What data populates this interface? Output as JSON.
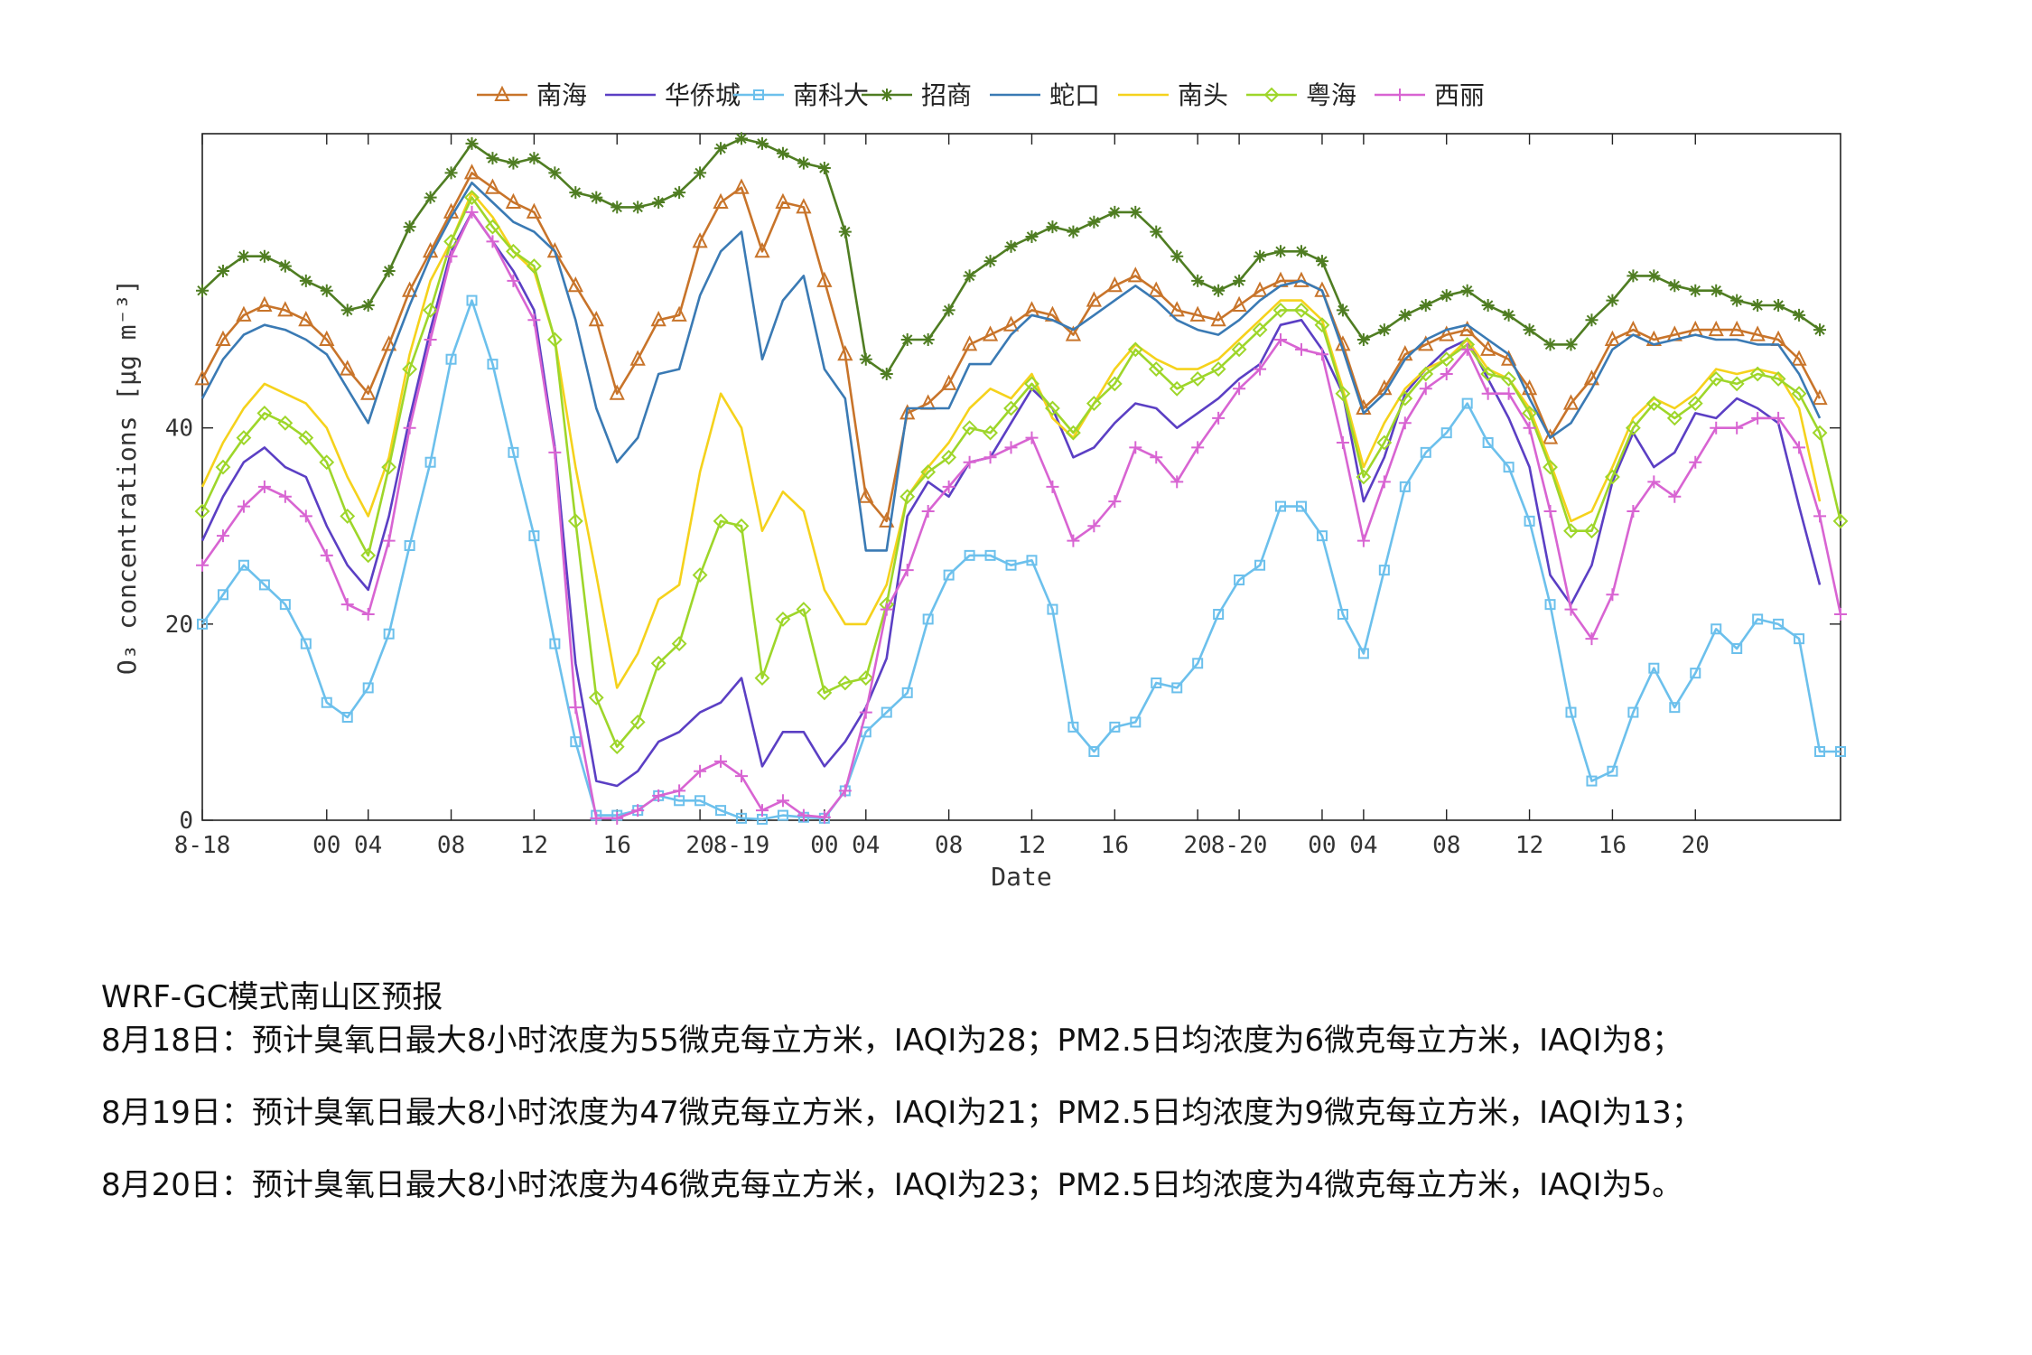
{
  "chart_data": {
    "type": "line",
    "title": "",
    "xlabel": "Date",
    "ylabel": "O₃ concentrations [μg m⁻³]",
    "ylim": [
      0,
      70
    ],
    "yticks": [
      0,
      20,
      40
    ],
    "grid": false,
    "legend_placement": "top",
    "x_hours_range": [
      0,
      79
    ],
    "xticks": [
      {
        "hour": 0,
        "label": "8-18"
      },
      {
        "hour": 6,
        "label": "00"
      },
      {
        "hour": 8,
        "label": "04"
      },
      {
        "hour": 12,
        "label": "08"
      },
      {
        "hour": 16,
        "label": "12"
      },
      {
        "hour": 20,
        "label": "16"
      },
      {
        "hour": 24,
        "label": "20"
      },
      {
        "hour": 26,
        "label": "8-19"
      },
      {
        "hour": 30,
        "label": "00"
      },
      {
        "hour": 32,
        "label": "04"
      },
      {
        "hour": 36,
        "label": "08"
      },
      {
        "hour": 40,
        "label": "12"
      },
      {
        "hour": 44,
        "label": "16"
      },
      {
        "hour": 48,
        "label": "20"
      },
      {
        "hour": 50,
        "label": "8-20"
      },
      {
        "hour": 54,
        "label": "00"
      },
      {
        "hour": 56,
        "label": "04"
      },
      {
        "hour": 60,
        "label": "08"
      },
      {
        "hour": 64,
        "label": "12"
      },
      {
        "hour": 68,
        "label": "16"
      },
      {
        "hour": 72,
        "label": "20"
      }
    ],
    "series": [
      {
        "name": "南海",
        "color": "#c8742a",
        "marker": "triangle",
        "values": [
          45,
          49,
          51.5,
          52.5,
          52,
          51,
          49,
          46,
          43.5,
          48.5,
          54,
          58,
          62,
          66,
          64.5,
          63,
          62,
          58,
          54.5,
          51,
          43.5,
          47,
          51,
          51.5,
          59,
          63,
          64.5,
          58,
          63,
          62.5,
          55,
          47.5,
          33,
          30.5,
          41.5,
          42.5,
          44.5,
          48.5,
          49.5,
          50.5,
          52,
          51.5,
          49.5,
          53,
          54.5,
          55.5,
          54,
          52,
          51.5,
          51,
          52.5,
          54,
          55,
          55,
          54,
          48.5,
          42,
          44,
          47.5,
          48.5,
          49.5,
          50,
          48,
          47,
          44,
          39,
          42.5,
          45,
          49,
          50,
          49,
          49.5,
          50,
          50,
          50,
          49.5,
          49,
          47,
          43
        ]
      },
      {
        "name": "华侨城",
        "color": "#5b3fc4",
        "marker": "none",
        "values": [
          28.5,
          33,
          36.5,
          38,
          36,
          35,
          30,
          26,
          23.5,
          31,
          41,
          50,
          58,
          62,
          59,
          56,
          52,
          38,
          16,
          4,
          3.5,
          5,
          8,
          9,
          11,
          12,
          14.5,
          5.5,
          9,
          9,
          5.5,
          8,
          11.5,
          16.5,
          31,
          34.5,
          33,
          36.5,
          37,
          40.5,
          44,
          42,
          37,
          38,
          40.5,
          42.5,
          42,
          40,
          41.5,
          43,
          45,
          46.5,
          50.5,
          51,
          48,
          43.5,
          32.5,
          37,
          43.5,
          46,
          48,
          49,
          45,
          41,
          36,
          25,
          22,
          26,
          34.5,
          39.5,
          36,
          37.5,
          41.5,
          41,
          43,
          42,
          40.5,
          32,
          24
        ]
      },
      {
        "name": "南科大",
        "color": "#6cc0ec",
        "marker": "square",
        "values": [
          20,
          23,
          26,
          24,
          22,
          18,
          12,
          10.5,
          13.5,
          19,
          28,
          36.5,
          47,
          53,
          46.5,
          37.5,
          29,
          18,
          8,
          0.5,
          0.5,
          1,
          2.5,
          2,
          2,
          1,
          0.2,
          0.1,
          0.5,
          0.3,
          0.2,
          3,
          9,
          11,
          13,
          20.5,
          25,
          27,
          27,
          26,
          26.5,
          21.5,
          9.5,
          7,
          9.5,
          10,
          14,
          13.5,
          16,
          21,
          24.5,
          26,
          32,
          32,
          29,
          21,
          17,
          25.5,
          34,
          37.5,
          39.5,
          42.5,
          38.5,
          36,
          30.5,
          22,
          11,
          4,
          5,
          11,
          15.5,
          11.5,
          15,
          19.5,
          17.5,
          20.5,
          20,
          18.5,
          7,
          7
        ]
      },
      {
        "name": "招商",
        "color": "#4f7d22",
        "marker": "star",
        "values": [
          54,
          56,
          57.5,
          57.5,
          56.5,
          55,
          54,
          52,
          52.5,
          56,
          60.5,
          63.5,
          66,
          69,
          67.5,
          67,
          67.5,
          66,
          64,
          63.5,
          62.5,
          62.5,
          63,
          64,
          66,
          68.5,
          69.5,
          69,
          68,
          67,
          66.5,
          60,
          47,
          45.5,
          49,
          49,
          52,
          55.5,
          57,
          58.5,
          59.5,
          60.5,
          60,
          61,
          62,
          62,
          60,
          57.5,
          55,
          54,
          55,
          57.5,
          58,
          58,
          57,
          52,
          49,
          50,
          51.5,
          52.5,
          53.5,
          54,
          52.5,
          51.5,
          50,
          48.5,
          48.5,
          51,
          53,
          55.5,
          55.5,
          54.5,
          54,
          54,
          53,
          52.5,
          52.5,
          51.5,
          50
        ]
      },
      {
        "name": "蛇口",
        "color": "#3a7ab4",
        "marker": "none",
        "values": [
          43,
          47,
          49.5,
          50.5,
          50,
          49,
          47.5,
          44,
          40.5,
          47,
          52.5,
          57.5,
          61.5,
          65,
          63,
          61,
          60,
          58,
          51,
          42,
          36.5,
          39,
          45.5,
          46,
          53.5,
          58,
          60,
          47,
          53,
          55.5,
          46,
          43,
          27.5,
          27.5,
          42,
          42,
          42,
          46.5,
          46.5,
          49.5,
          51.5,
          51,
          50,
          51.5,
          53,
          54.5,
          53,
          51,
          50,
          49.5,
          51,
          53,
          54.5,
          55,
          54,
          48,
          41.5,
          43.5,
          47,
          49,
          50,
          50.5,
          49,
          47.5,
          43,
          39,
          40.5,
          44,
          48,
          49.5,
          48.5,
          49,
          49.5,
          49,
          49,
          48.5,
          48.5,
          45.5,
          41
        ]
      },
      {
        "name": "南头",
        "color": "#f5d21c",
        "marker": "none",
        "values": [
          34,
          38.5,
          42,
          44.5,
          43.5,
          42.5,
          40,
          35,
          31,
          37,
          47.5,
          55,
          59,
          64,
          61.5,
          58,
          56,
          49,
          36,
          25,
          13.5,
          17,
          22.5,
          24,
          35.5,
          43.5,
          40,
          29.5,
          33.5,
          31.5,
          23.5,
          20,
          20,
          24,
          33,
          36,
          38.5,
          42,
          44,
          43,
          45.5,
          41,
          39,
          42.5,
          46,
          48.5,
          47,
          46,
          46,
          47,
          49,
          51,
          53,
          53,
          51,
          44,
          36,
          40.5,
          44,
          46,
          47,
          49,
          46,
          45,
          42,
          36.5,
          30.5,
          31.5,
          36,
          41,
          43,
          42,
          43.5,
          46,
          45.5,
          46,
          45.5,
          42,
          32.5
        ]
      },
      {
        "name": "粤海",
        "color": "#9ed62a",
        "marker": "diamond",
        "values": [
          31.5,
          36,
          39,
          41.5,
          40.5,
          39,
          36.5,
          31,
          27,
          36,
          46,
          52,
          59,
          63.5,
          60.5,
          58,
          56.5,
          49,
          30.5,
          12.5,
          7.5,
          10,
          16,
          18,
          25,
          30.5,
          30,
          14.5,
          20.5,
          21.5,
          13,
          14,
          14.5,
          22,
          33,
          35.5,
          37,
          40,
          39.5,
          42,
          44.5,
          42,
          39.5,
          42.5,
          44.5,
          48,
          46,
          44,
          45,
          46,
          48,
          50,
          52,
          52,
          50.5,
          43.5,
          35,
          38.5,
          43,
          45.5,
          47,
          48.5,
          45.5,
          45,
          41.5,
          36,
          29.5,
          29.5,
          35,
          40,
          42.5,
          41,
          42.5,
          45,
          44.5,
          45.5,
          45,
          43.5,
          39.5,
          30.5
        ]
      },
      {
        "name": "西丽",
        "color": "#d864d2",
        "marker": "plus",
        "values": [
          26,
          29,
          32,
          34,
          33,
          31,
          27,
          22,
          21,
          28.5,
          40,
          49,
          57.5,
          62,
          59,
          55,
          51,
          37.5,
          11.5,
          0.2,
          0.2,
          1,
          2.5,
          3,
          5,
          6,
          4.5,
          1,
          2,
          0.5,
          0.3,
          3,
          11,
          21.5,
          25.5,
          31.5,
          34,
          36.5,
          37,
          38,
          39,
          34,
          28.5,
          30,
          32.5,
          38,
          37,
          34.5,
          38,
          41,
          44,
          46,
          49,
          48,
          47.5,
          38.5,
          28.5,
          34.5,
          40.5,
          44,
          45.5,
          48,
          43.5,
          43.5,
          40,
          31.5,
          21.5,
          18.5,
          23,
          31.5,
          34.5,
          33,
          36.5,
          40,
          40,
          41,
          41,
          38,
          31,
          21
        ]
      }
    ]
  },
  "notes": {
    "title": "WRF-GC模式南山区预报",
    "lines": [
      "8月18日：预计臭氧日最大8小时浓度为55微克每立方米，IAQI为28；PM2.5日均浓度为6微克每立方米，IAQI为8；",
      "8月19日：预计臭氧日最大8小时浓度为47微克每立方米，IAQI为21；PM2.5日均浓度为9微克每立方米，IAQI为13；",
      "8月20日：预计臭氧日最大8小时浓度为46微克每立方米，IAQI为23；PM2.5日均浓度为4微克每立方米，IAQI为5。"
    ]
  }
}
